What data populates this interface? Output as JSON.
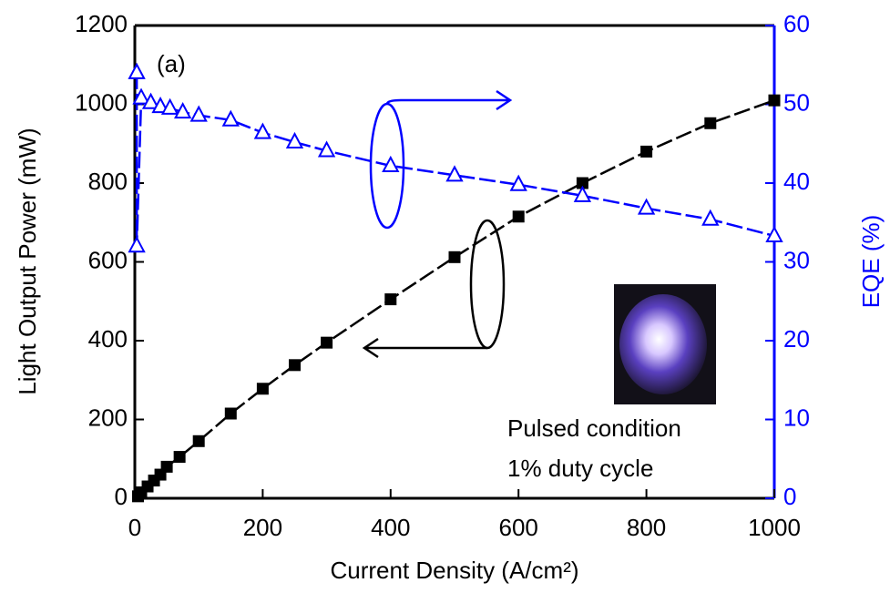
{
  "chart_data": {
    "type": "scatter",
    "x_label": "Current Density (A/cm²)",
    "y_label": "Light Output Power (mW)",
    "y2_label": "EQE (%)",
    "annotations": [
      "(a)",
      "Pulsed condition",
      "1% duty cycle"
    ],
    "xlim": [
      0,
      1000
    ],
    "xticks": [
      0,
      200,
      400,
      600,
      800,
      1000
    ],
    "ylim": [
      0,
      1200
    ],
    "yticks": [
      0,
      200,
      400,
      600,
      800,
      1000,
      1200
    ],
    "y2lim": [
      0,
      60
    ],
    "y2ticks": [
      0,
      10,
      20,
      30,
      40,
      50,
      60
    ],
    "series": [
      {
        "color": "#000000",
        "marker": "square",
        "axis": "y",
        "x": [
          5,
          10,
          20,
          30,
          40,
          50,
          70,
          100,
          150,
          200,
          250,
          300,
          400,
          500,
          600,
          700,
          800,
          900,
          1000
        ],
        "values": [
          5,
          15,
          30,
          45,
          60,
          80,
          105,
          145,
          215,
          278,
          338,
          395,
          505,
          612,
          715,
          800,
          880,
          952,
          1010
        ]
      },
      {
        "color": "#0000ff",
        "marker": "triangle",
        "axis": "y2",
        "x": [
          3,
          3,
          10,
          25,
          40,
          55,
          75,
          100,
          150,
          200,
          250,
          300,
          400,
          500,
          600,
          700,
          800,
          900,
          1000
        ],
        "values": [
          54,
          32,
          50.8,
          50.2,
          49.7,
          49.5,
          49,
          48.6,
          48,
          46.4,
          45.2,
          44.1,
          42.2,
          41,
          39.8,
          38.4,
          36.8,
          35.4,
          33.3
        ]
      }
    ]
  }
}
